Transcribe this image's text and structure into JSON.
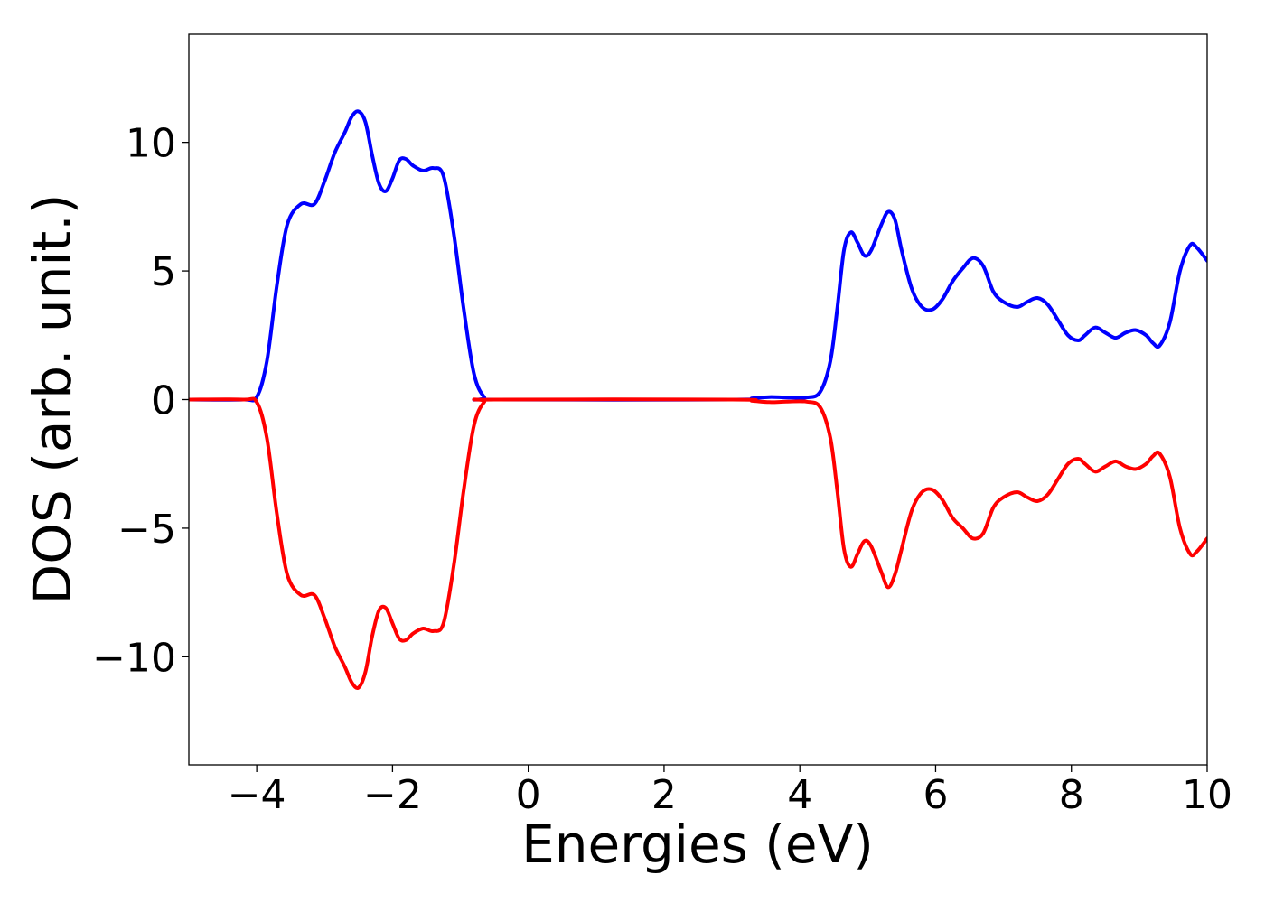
{
  "chart_data": {
    "type": "line",
    "xlabel": "Energies (eV)",
    "ylabel": "DOS (arb. unit.)",
    "xlim": [
      -5,
      10
    ],
    "ylim": [
      -14.2,
      14.2
    ],
    "x_ticks": [
      -4,
      -2,
      0,
      2,
      4,
      6,
      8,
      10
    ],
    "y_ticks": [
      -10,
      -5,
      0,
      5,
      10
    ],
    "x_tick_labels": [
      "−4",
      "−2",
      "0",
      "2",
      "4",
      "6",
      "8",
      "10"
    ],
    "y_tick_labels": [
      "−10",
      "−5",
      "0",
      "5",
      "10"
    ],
    "grid": false,
    "legend": "none",
    "series": [
      {
        "color": "#0000ff",
        "points": [
          [
            -5,
            0
          ],
          [
            -4.2,
            0
          ],
          [
            -4.0,
            0.1
          ],
          [
            -3.85,
            1.5
          ],
          [
            -3.7,
            4.5
          ],
          [
            -3.55,
            6.8
          ],
          [
            -3.35,
            7.6
          ],
          [
            -3.15,
            7.6
          ],
          [
            -3.0,
            8.5
          ],
          [
            -2.85,
            9.6
          ],
          [
            -2.7,
            10.4
          ],
          [
            -2.6,
            11.0
          ],
          [
            -2.5,
            11.2
          ],
          [
            -2.4,
            10.8
          ],
          [
            -2.3,
            9.5
          ],
          [
            -2.2,
            8.4
          ],
          [
            -2.1,
            8.1
          ],
          [
            -2.0,
            8.6
          ],
          [
            -1.9,
            9.3
          ],
          [
            -1.8,
            9.35
          ],
          [
            -1.7,
            9.1
          ],
          [
            -1.55,
            8.9
          ],
          [
            -1.4,
            9.0
          ],
          [
            -1.25,
            8.7
          ],
          [
            -1.1,
            6.5
          ],
          [
            -0.95,
            3.5
          ],
          [
            -0.8,
            1.0
          ],
          [
            -0.65,
            0.1
          ],
          [
            -0.5,
            0
          ],
          [
            3.0,
            0
          ],
          [
            3.3,
            0.05
          ],
          [
            3.55,
            0.1
          ],
          [
            3.8,
            0.08
          ],
          [
            4.1,
            0.08
          ],
          [
            4.3,
            0.3
          ],
          [
            4.45,
            1.5
          ],
          [
            4.55,
            3.5
          ],
          [
            4.65,
            5.8
          ],
          [
            4.75,
            6.5
          ],
          [
            4.85,
            6.1
          ],
          [
            4.95,
            5.6
          ],
          [
            5.05,
            5.8
          ],
          [
            5.2,
            6.8
          ],
          [
            5.3,
            7.3
          ],
          [
            5.4,
            7.0
          ],
          [
            5.5,
            5.8
          ],
          [
            5.65,
            4.3
          ],
          [
            5.8,
            3.6
          ],
          [
            5.95,
            3.5
          ],
          [
            6.1,
            3.9
          ],
          [
            6.25,
            4.6
          ],
          [
            6.4,
            5.1
          ],
          [
            6.55,
            5.5
          ],
          [
            6.7,
            5.2
          ],
          [
            6.85,
            4.2
          ],
          [
            7.0,
            3.8
          ],
          [
            7.2,
            3.6
          ],
          [
            7.35,
            3.8
          ],
          [
            7.5,
            3.95
          ],
          [
            7.65,
            3.7
          ],
          [
            7.8,
            3.1
          ],
          [
            7.95,
            2.5
          ],
          [
            8.1,
            2.3
          ],
          [
            8.2,
            2.5
          ],
          [
            8.35,
            2.8
          ],
          [
            8.5,
            2.6
          ],
          [
            8.65,
            2.4
          ],
          [
            8.8,
            2.6
          ],
          [
            8.95,
            2.7
          ],
          [
            9.1,
            2.5
          ],
          [
            9.2,
            2.2
          ],
          [
            9.3,
            2.1
          ],
          [
            9.45,
            3.0
          ],
          [
            9.6,
            5.0
          ],
          [
            9.75,
            6.0
          ],
          [
            9.85,
            5.9
          ],
          [
            10.0,
            5.4
          ]
        ]
      },
      {
        "color": "#ff0000",
        "points": [
          [
            -5,
            0
          ],
          [
            -4.2,
            0
          ],
          [
            -4.0,
            -0.1
          ],
          [
            -3.85,
            -1.5
          ],
          [
            -3.7,
            -4.5
          ],
          [
            -3.55,
            -6.8
          ],
          [
            -3.35,
            -7.6
          ],
          [
            -3.15,
            -7.6
          ],
          [
            -3.0,
            -8.5
          ],
          [
            -2.85,
            -9.6
          ],
          [
            -2.7,
            -10.4
          ],
          [
            -2.6,
            -11.0
          ],
          [
            -2.5,
            -11.2
          ],
          [
            -2.4,
            -10.6
          ],
          [
            -2.3,
            -9.2
          ],
          [
            -2.2,
            -8.2
          ],
          [
            -2.1,
            -8.1
          ],
          [
            -2.0,
            -8.7
          ],
          [
            -1.9,
            -9.3
          ],
          [
            -1.8,
            -9.35
          ],
          [
            -1.7,
            -9.1
          ],
          [
            -1.55,
            -8.9
          ],
          [
            -1.4,
            -9.0
          ],
          [
            -1.25,
            -8.7
          ],
          [
            -1.1,
            -6.5
          ],
          [
            -0.95,
            -3.5
          ],
          [
            -0.8,
            -1.0
          ],
          [
            -0.65,
            -0.1
          ],
          [
            -0.5,
            0
          ],
          [
            3.0,
            0
          ],
          [
            3.3,
            -0.05
          ],
          [
            3.55,
            -0.1
          ],
          [
            3.8,
            -0.08
          ],
          [
            4.1,
            -0.08
          ],
          [
            4.3,
            -0.3
          ],
          [
            4.45,
            -1.5
          ],
          [
            4.55,
            -3.5
          ],
          [
            4.65,
            -5.8
          ],
          [
            4.75,
            -6.5
          ],
          [
            4.85,
            -6.0
          ],
          [
            4.95,
            -5.5
          ],
          [
            5.05,
            -5.7
          ],
          [
            5.2,
            -6.7
          ],
          [
            5.3,
            -7.3
          ],
          [
            5.4,
            -6.8
          ],
          [
            5.5,
            -5.8
          ],
          [
            5.65,
            -4.3
          ],
          [
            5.8,
            -3.6
          ],
          [
            5.95,
            -3.5
          ],
          [
            6.1,
            -3.9
          ],
          [
            6.25,
            -4.6
          ],
          [
            6.4,
            -5.0
          ],
          [
            6.55,
            -5.4
          ],
          [
            6.7,
            -5.2
          ],
          [
            6.85,
            -4.2
          ],
          [
            7.0,
            -3.8
          ],
          [
            7.2,
            -3.6
          ],
          [
            7.35,
            -3.8
          ],
          [
            7.5,
            -3.95
          ],
          [
            7.65,
            -3.7
          ],
          [
            7.8,
            -3.1
          ],
          [
            7.95,
            -2.5
          ],
          [
            8.1,
            -2.3
          ],
          [
            8.2,
            -2.5
          ],
          [
            8.35,
            -2.8
          ],
          [
            8.5,
            -2.6
          ],
          [
            8.65,
            -2.4
          ],
          [
            8.8,
            -2.6
          ],
          [
            8.95,
            -2.7
          ],
          [
            9.1,
            -2.5
          ],
          [
            9.2,
            -2.2
          ],
          [
            9.3,
            -2.1
          ],
          [
            9.45,
            -3.0
          ],
          [
            9.6,
            -5.0
          ],
          [
            9.75,
            -6.0
          ],
          [
            9.85,
            -5.9
          ],
          [
            10.0,
            -5.4
          ]
        ]
      }
    ]
  }
}
